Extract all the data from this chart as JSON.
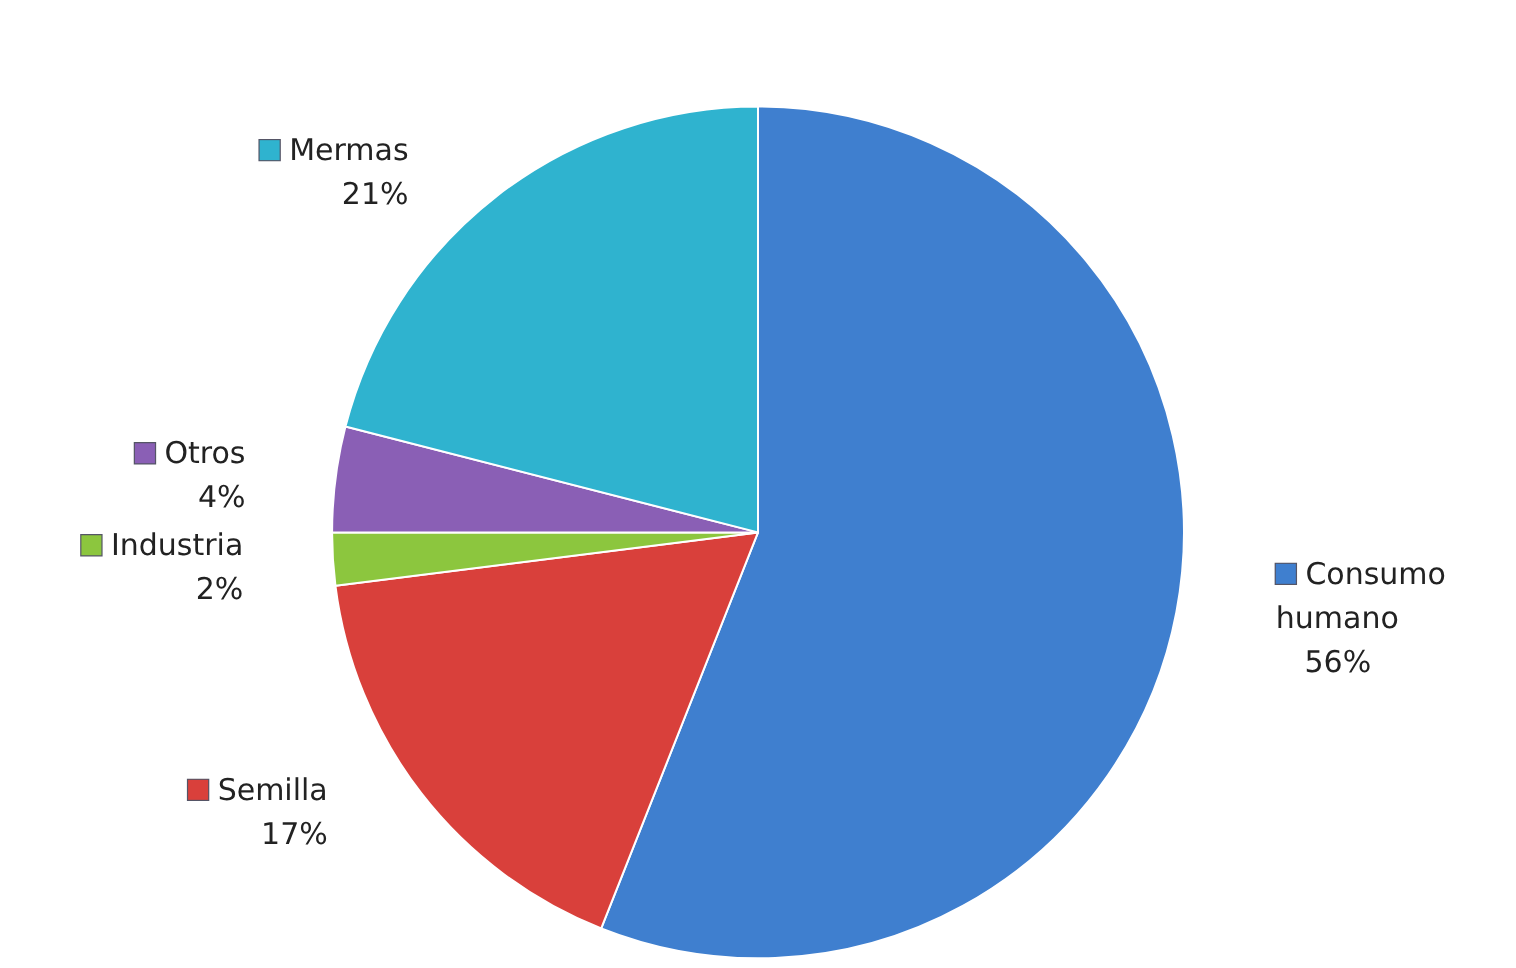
{
  "chart_data": {
    "type": "pie",
    "categories": [
      "Consumo humano",
      "Semilla",
      "Industria",
      "Otros",
      "Mermas"
    ],
    "values": [
      56,
      17,
      2,
      4,
      21
    ],
    "value_labels": [
      "56%",
      "17%",
      "2%",
      "4%",
      "21%"
    ],
    "legend": "left",
    "colors": [
      "#3f7fcf",
      "#d9403b",
      "#8cc63e",
      "#8a5fb5",
      "#2fb3cf"
    ]
  }
}
